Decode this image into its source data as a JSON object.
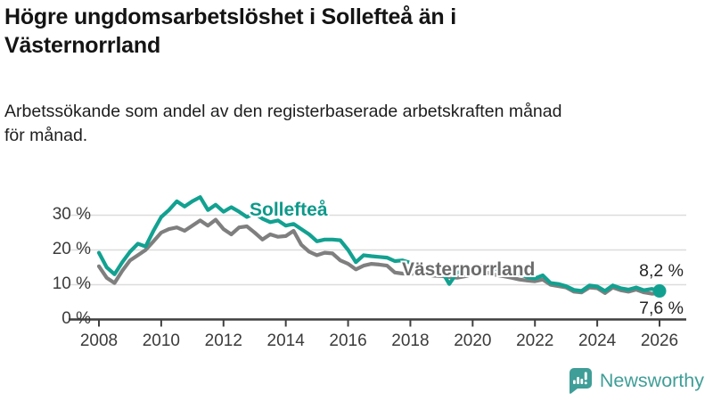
{
  "header": {
    "title": "Högre ungdomsarbetslöshet i Sollefteå än i Västernorrland",
    "title_lines": [
      "Högre ungdomsarbetslöshet i Sollefteå än i",
      "Västernorrland"
    ],
    "subtitle": "Arbetssökande som andel av den registerbaserade arbetskraften månad för månad.",
    "subtitle_lines": [
      "Arbetssökande som andel av den registerbaserade arbetskraften månad",
      "för månad."
    ]
  },
  "chart_data": {
    "type": "line",
    "title": "Högre ungdomsarbetslöshet i Sollefteå än i Västernorrland",
    "xlabel": "",
    "ylabel": "",
    "grid": true,
    "legend_position": "inline-labels",
    "xlim": [
      2007.0,
      2026.9
    ],
    "ylim": [
      0,
      37
    ],
    "x_ticks": [
      2008,
      2010,
      2012,
      2014,
      2016,
      2018,
      2020,
      2022,
      2024,
      2026
    ],
    "y_tick_values": [
      0,
      10,
      20,
      30
    ],
    "y_tick_labels": [
      "0 %",
      "10 %",
      "20 %",
      "30 %"
    ],
    "x": [
      2008.0,
      2008.25,
      2008.5,
      2008.75,
      2009.0,
      2009.25,
      2009.5,
      2009.75,
      2010.0,
      2010.25,
      2010.5,
      2010.75,
      2011.0,
      2011.25,
      2011.5,
      2011.75,
      2012.0,
      2012.25,
      2012.5,
      2012.75,
      2013.0,
      2013.25,
      2013.5,
      2013.75,
      2014.0,
      2014.25,
      2014.5,
      2014.75,
      2015.0,
      2015.25,
      2015.5,
      2015.75,
      2016.0,
      2016.25,
      2016.5,
      2016.75,
      2017.0,
      2017.25,
      2017.5,
      2017.75,
      2018.0,
      2018.25,
      2018.5,
      2018.75,
      2019.0,
      2019.25,
      2019.5,
      2019.75,
      2020.0,
      2020.25,
      2020.5,
      2020.75,
      2021.0,
      2021.25,
      2021.5,
      2021.75,
      2022.0,
      2022.25,
      2022.5,
      2022.75,
      2023.0,
      2023.25,
      2023.5,
      2023.75,
      2024.0,
      2024.25,
      2024.5,
      2024.75,
      2025.0,
      2025.25,
      2025.5,
      2025.75,
      2026.0
    ],
    "series": [
      {
        "name": "Sollefteå",
        "color": "#12a191",
        "label_color": "#0e9a8b",
        "end_label": "8,2 %",
        "end_value": 8.2,
        "end_dot": true,
        "values": [
          19.2,
          15.0,
          13.0,
          16.5,
          19.5,
          21.8,
          21.0,
          25.5,
          29.5,
          31.5,
          34.0,
          32.5,
          34.0,
          35.2,
          31.5,
          33.0,
          31.0,
          32.3,
          31.0,
          29.5,
          30.5,
          29.0,
          28.0,
          28.5,
          27.0,
          27.5,
          26.0,
          24.5,
          22.5,
          23.0,
          23.0,
          22.8,
          20.0,
          16.5,
          18.5,
          18.2,
          18.0,
          17.8,
          16.8,
          17.0,
          16.3,
          15.5,
          15.0,
          14.5,
          14.0,
          10.2,
          13.5,
          13.8,
          14.2,
          15.5,
          15.2,
          14.5,
          14.0,
          13.5,
          13.0,
          12.2,
          11.8,
          12.7,
          10.5,
          10.2,
          9.6,
          8.5,
          8.2,
          9.8,
          9.5,
          8.2,
          9.8,
          9.0,
          8.6,
          9.2,
          8.4,
          8.8,
          8.2
        ]
      },
      {
        "name": "Västernorrland",
        "color": "#7f7f7f",
        "label_color": "#6b6b6b",
        "end_label": "7,6 %",
        "end_value": 7.6,
        "end_dot": false,
        "values": [
          15.3,
          12.0,
          10.5,
          14.0,
          17.0,
          18.5,
          20.0,
          22.5,
          25.0,
          26.0,
          26.5,
          25.5,
          27.0,
          28.5,
          27.0,
          28.7,
          26.0,
          24.5,
          26.5,
          26.8,
          25.0,
          23.0,
          24.5,
          23.8,
          24.0,
          25.5,
          21.5,
          19.5,
          18.5,
          19.2,
          19.0,
          17.0,
          16.0,
          14.4,
          15.5,
          16.0,
          15.8,
          15.5,
          13.5,
          13.2,
          13.1,
          13.3,
          13.0,
          12.6,
          12.5,
          12.2,
          12.0,
          12.4,
          13.0,
          13.8,
          13.4,
          12.8,
          12.4,
          12.0,
          11.5,
          11.2,
          11.0,
          11.5,
          10.0,
          9.6,
          9.2,
          8.0,
          7.8,
          9.2,
          9.0,
          7.6,
          9.2,
          8.4,
          8.0,
          8.6,
          7.8,
          7.4,
          7.6
        ]
      }
    ],
    "axis_color": "#3f3f3f",
    "gridline_color": "#dcdcdc"
  },
  "footer": {
    "brand": "Newsworthy"
  }
}
